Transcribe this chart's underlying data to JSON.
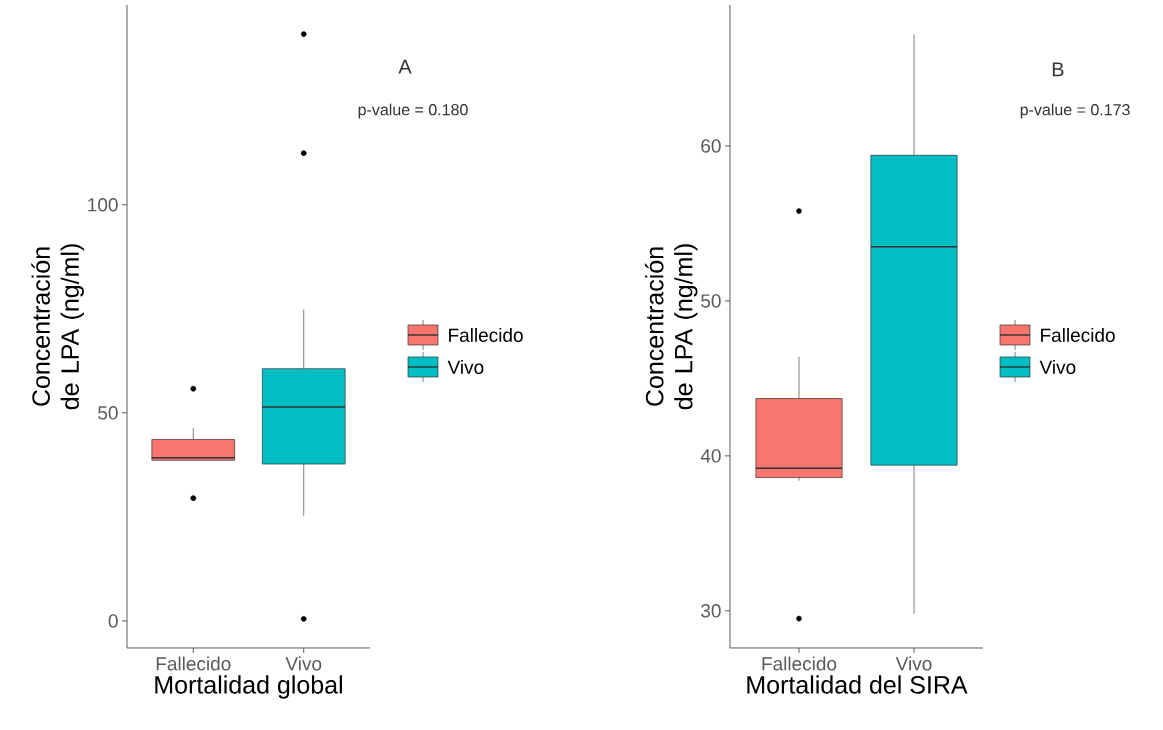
{
  "chart_data": [
    {
      "type": "box",
      "xlabel": "Mortalidad global",
      "ylabel": "Concentración de LPA (ng/ml)",
      "categories": [
        "Fallecido",
        "Vivo"
      ],
      "series": [
        {
          "name": "Fallecido",
          "color": "#f8766d",
          "boxes": [
            {
              "low": 38.6,
              "q1": 38.6,
              "median": 39.2,
              "q3": 43.6,
              "high": 46.4,
              "outliers": [
                55.8,
                29.5
              ]
            },
            null
          ]
        },
        {
          "name": "Vivo",
          "color": "#00bfc4",
          "boxes": [
            null,
            {
              "low": 25.3,
              "q1": 37.7,
              "median": 51.4,
              "q3": 60.6,
              "high": 74.8,
              "outliers": [
                141,
                112.4,
                0.5
              ]
            }
          ]
        }
      ],
      "ylim": [
        -6.5,
        148
      ],
      "yticks": [
        0,
        50,
        100
      ],
      "legend": "right",
      "grid": false,
      "annotations": [
        "A",
        "p-value = 0.180"
      ]
    },
    {
      "type": "box",
      "xlabel": "Mortalidad del SIRA",
      "ylabel": "Concentración de LPA (ng/ml)",
      "categories": [
        "Fallecido",
        "Vivo"
      ],
      "series": [
        {
          "name": "Fallecido",
          "color": "#f8766d",
          "boxes": [
            {
              "low": 38.4,
              "q1": 38.6,
              "median": 39.2,
              "q3": 43.7,
              "high": 46.4,
              "outliers": [
                55.8,
                29.5
              ]
            },
            null
          ]
        },
        {
          "name": "Vivo",
          "color": "#00bfc4",
          "boxes": [
            null,
            {
              "low": 29.8,
              "q1": 39.4,
              "median": 53.5,
              "q3": 59.4,
              "high": 67.2
            }
          ]
        }
      ],
      "ylim": [
        27.6,
        69.1
      ],
      "yticks": [
        30,
        40,
        50,
        60
      ],
      "legend": "right",
      "grid": false,
      "annotations": [
        "B",
        "p-value = 0.173"
      ]
    }
  ]
}
